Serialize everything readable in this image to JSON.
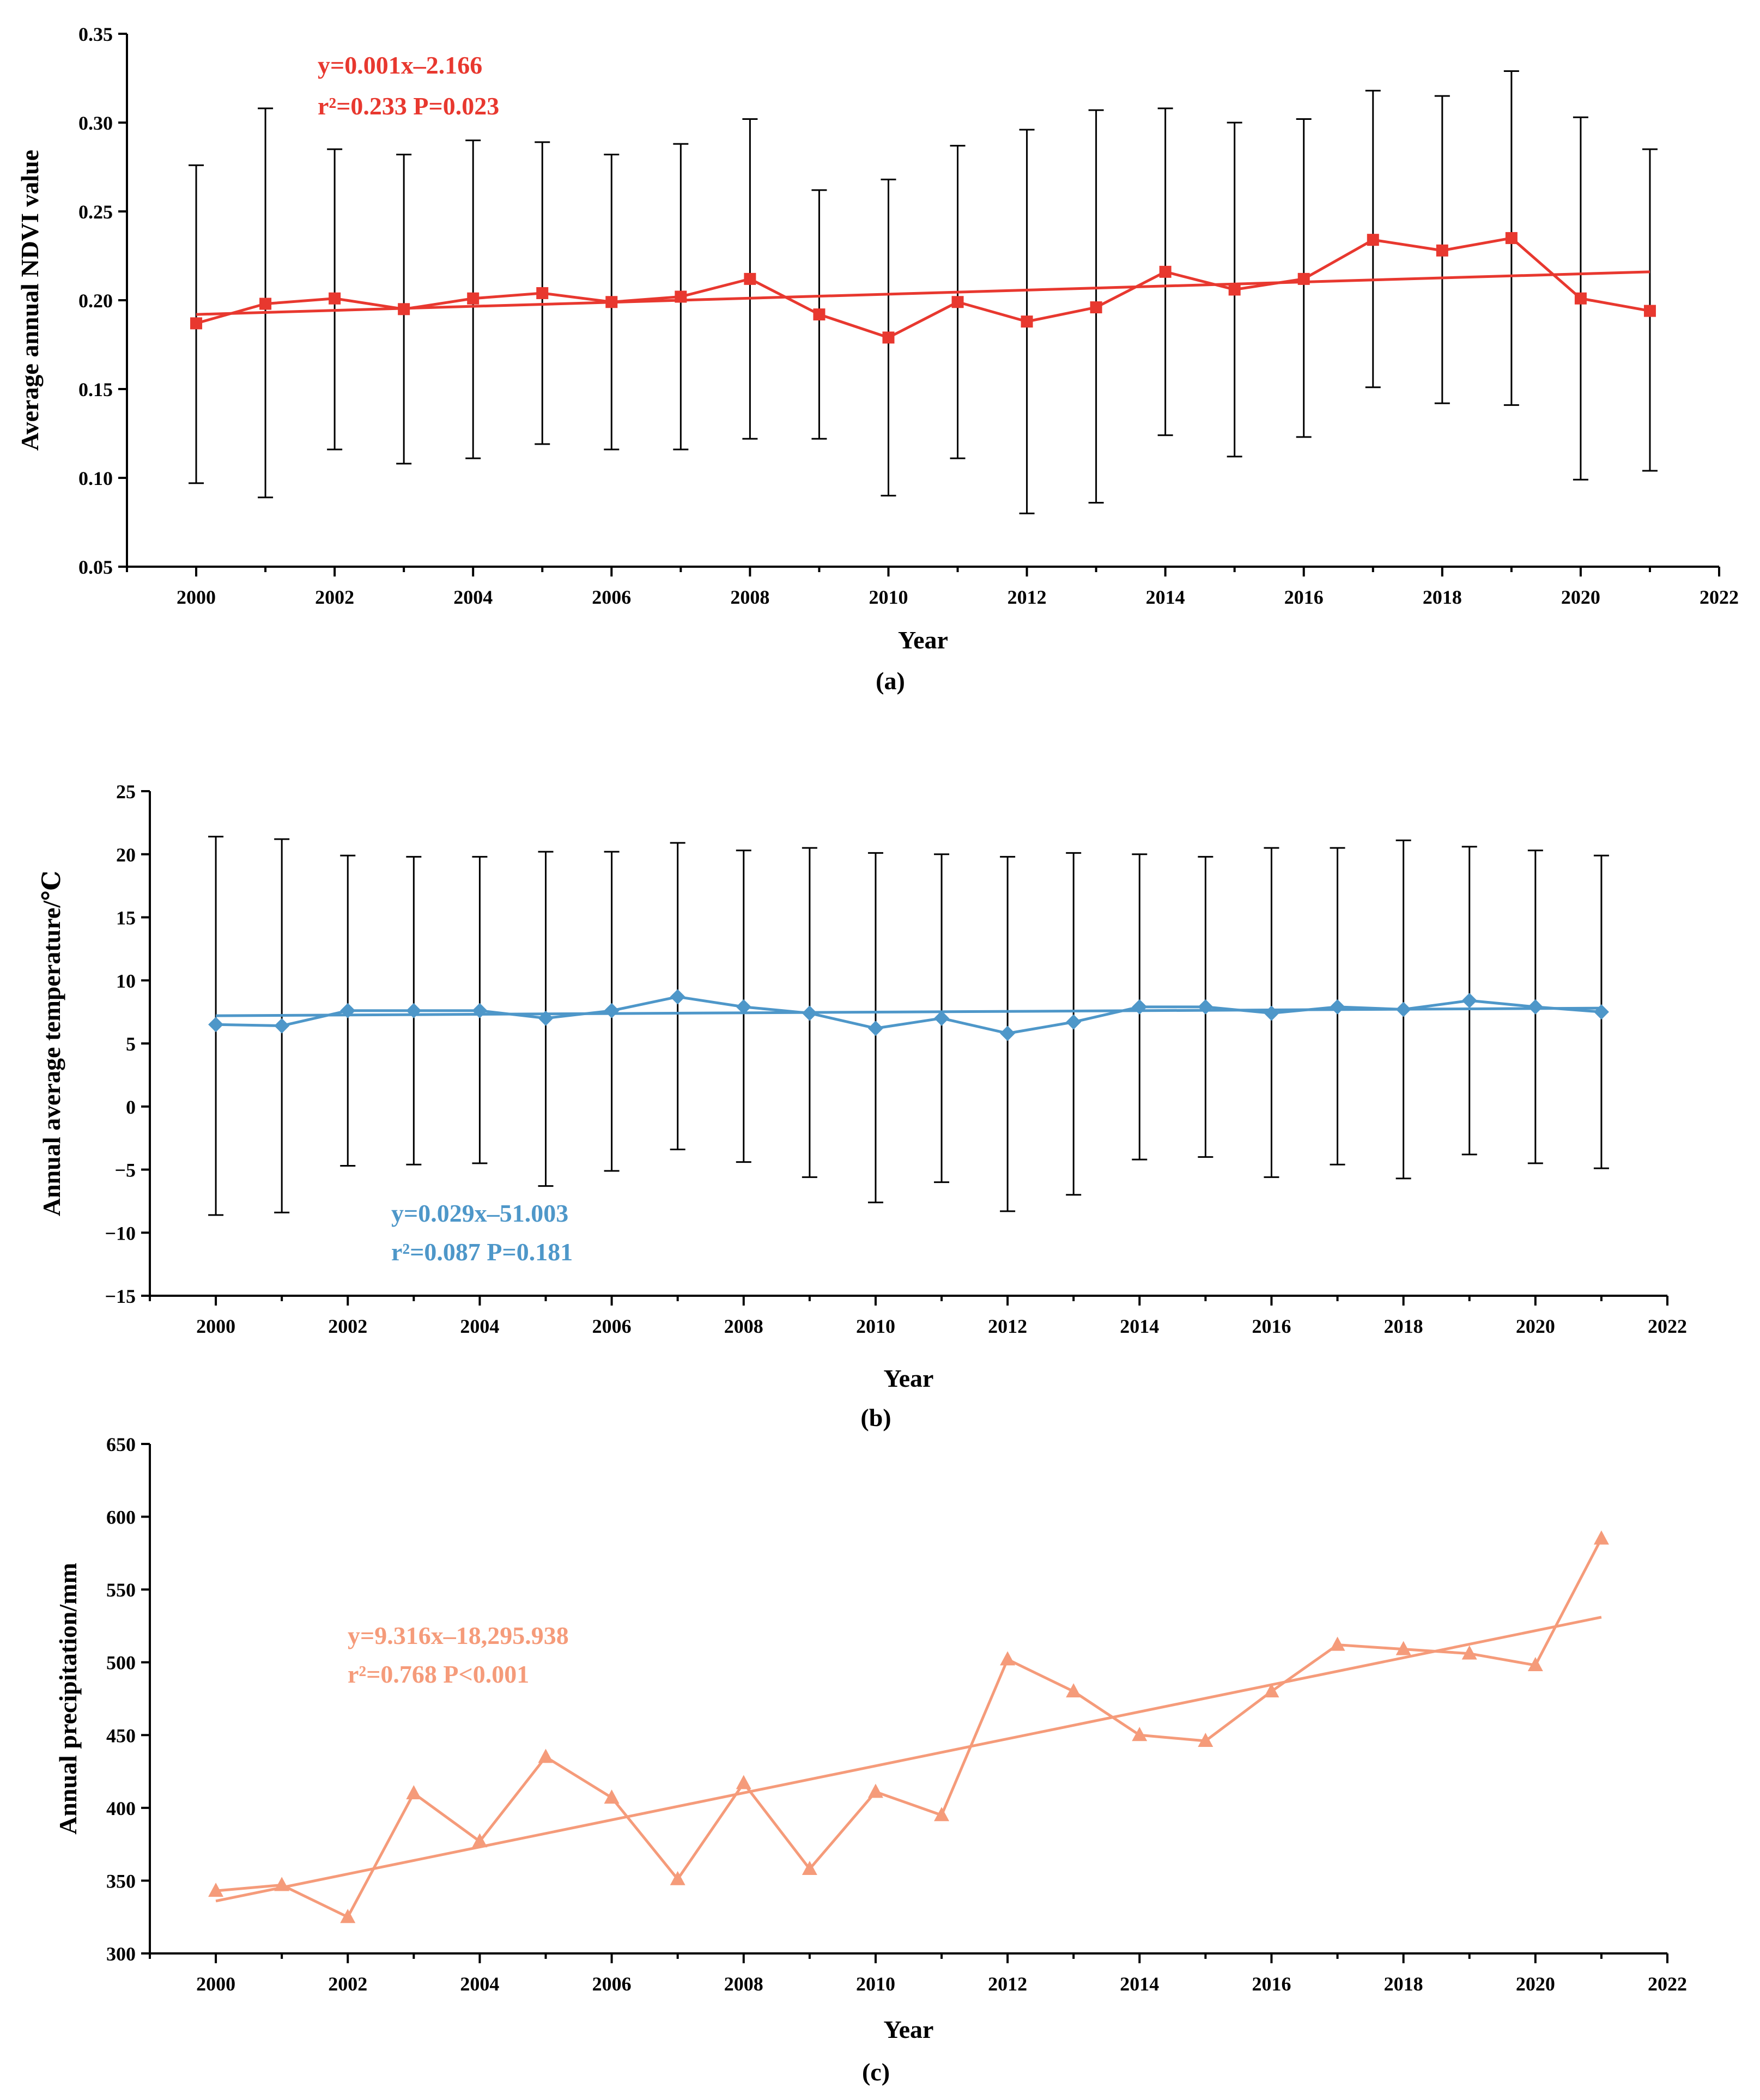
{
  "chart_data": [
    {
      "type": "line",
      "panel_label": "(a)",
      "xlabel": "Year",
      "ylabel": "Average annual NDVI value",
      "xlim": [
        1999,
        2022
      ],
      "ylim": [
        0.05,
        0.35
      ],
      "x_ticks": [
        2000,
        2002,
        2004,
        2006,
        2008,
        2010,
        2012,
        2014,
        2016,
        2018,
        2020,
        2022
      ],
      "y_ticks": [
        0.05,
        0.1,
        0.15,
        0.2,
        0.25,
        0.3,
        0.35
      ],
      "y_tick_labels": [
        "0.05",
        "0.10",
        "0.15",
        "0.20",
        "0.25",
        "0.30",
        "0.35"
      ],
      "color": "#e8382f",
      "marker": "square",
      "x": [
        2000,
        2001,
        2002,
        2003,
        2004,
        2005,
        2006,
        2007,
        2008,
        2009,
        2010,
        2011,
        2012,
        2013,
        2014,
        2015,
        2016,
        2017,
        2018,
        2019,
        2020,
        2021
      ],
      "series": [
        {
          "name": "Average annual NDVI",
          "values": [
            0.187,
            0.198,
            0.201,
            0.195,
            0.201,
            0.204,
            0.199,
            0.202,
            0.212,
            0.192,
            0.179,
            0.199,
            0.188,
            0.196,
            0.216,
            0.206,
            0.212,
            0.234,
            0.228,
            0.235,
            0.201,
            0.194
          ],
          "error_upper": [
            0.276,
            0.308,
            0.285,
            0.282,
            0.29,
            0.289,
            0.282,
            0.288,
            0.302,
            0.262,
            0.268,
            0.287,
            0.296,
            0.307,
            0.308,
            0.3,
            0.302,
            0.318,
            0.315,
            0.329,
            0.303,
            0.285
          ],
          "error_lower": [
            0.097,
            0.089,
            0.116,
            0.108,
            0.111,
            0.119,
            0.116,
            0.116,
            0.122,
            0.122,
            0.09,
            0.111,
            0.08,
            0.086,
            0.124,
            0.112,
            0.123,
            0.151,
            0.142,
            0.141,
            0.099,
            0.104
          ]
        }
      ],
      "trend": {
        "x_start": 2000,
        "y_start": 0.192,
        "x_end": 2021,
        "y_end": 0.216
      },
      "equation": "y=0.001x–2.166",
      "stats": "r²=0.233   P=0.023"
    },
    {
      "type": "line",
      "panel_label": "(b)",
      "xlabel": "Year",
      "ylabel": "Annual average temperature/℃",
      "xlim": [
        1999,
        2022
      ],
      "ylim": [
        -15,
        25
      ],
      "x_ticks": [
        2000,
        2002,
        2004,
        2006,
        2008,
        2010,
        2012,
        2014,
        2016,
        2018,
        2020,
        2022
      ],
      "y_ticks": [
        -15,
        -10,
        -5,
        0,
        5,
        10,
        15,
        20,
        25
      ],
      "y_tick_labels": [
        "−15",
        "−10",
        "−5",
        "0",
        "5",
        "10",
        "15",
        "20",
        "25"
      ],
      "color": "#4e97c9",
      "marker": "diamond",
      "x": [
        2000,
        2001,
        2002,
        2003,
        2004,
        2005,
        2006,
        2007,
        2008,
        2009,
        2010,
        2011,
        2012,
        2013,
        2014,
        2015,
        2016,
        2017,
        2018,
        2019,
        2020,
        2021
      ],
      "series": [
        {
          "name": "Annual average temperature",
          "values": [
            6.5,
            6.4,
            7.6,
            7.6,
            7.6,
            7.0,
            7.6,
            8.7,
            7.9,
            7.4,
            6.2,
            7.0,
            5.8,
            6.7,
            7.9,
            7.9,
            7.4,
            7.9,
            7.7,
            8.4,
            7.9,
            7.5
          ],
          "error_upper": [
            21.4,
            21.2,
            19.9,
            19.8,
            19.8,
            20.2,
            20.2,
            20.9,
            20.3,
            20.5,
            20.1,
            20.0,
            19.8,
            20.1,
            20.0,
            19.8,
            20.5,
            20.5,
            21.1,
            20.6,
            20.3,
            19.9
          ],
          "error_lower": [
            -8.6,
            -8.4,
            -4.7,
            -4.6,
            -4.5,
            -6.3,
            -5.1,
            -3.4,
            -4.4,
            -5.6,
            -7.6,
            -6.0,
            -8.3,
            -7.0,
            -4.2,
            -4.0,
            -5.6,
            -4.6,
            -5.7,
            -3.8,
            -4.5,
            -4.9
          ]
        }
      ],
      "trend": {
        "x_start": 2000,
        "y_start": 7.2,
        "x_end": 2021,
        "y_end": 7.8
      },
      "equation": "y=0.029x–51.003",
      "stats": "r²=0.087   P=0.181"
    },
    {
      "type": "line",
      "panel_label": "(c)",
      "xlabel": "Year",
      "ylabel": "Annual precipitation/mm",
      "xlim": [
        1999,
        2022
      ],
      "ylim": [
        300,
        650
      ],
      "x_ticks": [
        2000,
        2002,
        2004,
        2006,
        2008,
        2010,
        2012,
        2014,
        2016,
        2018,
        2020,
        2022
      ],
      "y_ticks": [
        300,
        350,
        400,
        450,
        500,
        550,
        600,
        650
      ],
      "y_tick_labels": [
        "300",
        "350",
        "400",
        "450",
        "500",
        "550",
        "600",
        "650"
      ],
      "color": "#f59b7a",
      "marker": "triangle",
      "x": [
        2000,
        2001,
        2002,
        2003,
        2004,
        2005,
        2006,
        2007,
        2008,
        2009,
        2010,
        2011,
        2012,
        2013,
        2014,
        2015,
        2016,
        2017,
        2018,
        2019,
        2020,
        2021
      ],
      "series": [
        {
          "name": "Annual precipitation",
          "values": [
            343,
            347,
            325,
            410,
            377,
            435,
            407,
            351,
            417,
            358,
            411,
            395,
            502,
            480,
            450,
            446,
            480,
            512,
            509,
            506,
            498,
            585
          ]
        }
      ],
      "trend": {
        "x_start": 2000,
        "y_start": 336,
        "x_end": 2021,
        "y_end": 531
      },
      "equation": "y=9.316x–18,295.938",
      "stats": "r²=0.768    P<0.001"
    }
  ]
}
